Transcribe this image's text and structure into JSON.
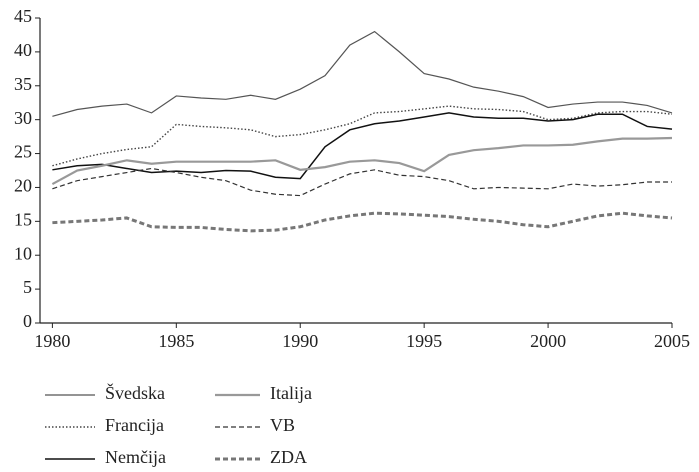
{
  "chart_data": {
    "type": "line",
    "x": [
      1980,
      1981,
      1982,
      1983,
      1984,
      1985,
      1986,
      1987,
      1988,
      1989,
      1990,
      1991,
      1992,
      1993,
      1994,
      1995,
      1996,
      1997,
      1998,
      1999,
      2000,
      2001,
      2002,
      2003,
      2004,
      2005
    ],
    "series": [
      {
        "name": "Švedska",
        "color": "#555555",
        "width": 1.2,
        "dash": "solid",
        "values": [
          30.5,
          31.5,
          32,
          32.3,
          31,
          33.5,
          33.2,
          33,
          33.6,
          33,
          34.5,
          36.5,
          41,
          43,
          40,
          36.8,
          36,
          34.8,
          34.2,
          33.4,
          31.8,
          32.3,
          32.6,
          32.6,
          32.1,
          31
        ]
      },
      {
        "name": "Francija",
        "color": "#444444",
        "width": 1.4,
        "dash": "dotted",
        "values": [
          23.2,
          24.2,
          25,
          25.6,
          26,
          29.3,
          29,
          28.8,
          28.5,
          27.5,
          27.8,
          28.5,
          29.4,
          31,
          31.2,
          31.6,
          32,
          31.6,
          31.5,
          31.2,
          30,
          30.2,
          31,
          31.2,
          31.2,
          30.8
        ]
      },
      {
        "name": "Nemčija",
        "color": "#111111",
        "width": 1.5,
        "dash": "solid",
        "values": [
          22.6,
          23.2,
          23.4,
          22.8,
          22.2,
          22.4,
          22.2,
          22.5,
          22.4,
          21.5,
          21.3,
          26,
          28.5,
          29.4,
          29.8,
          30.4,
          31,
          30.4,
          30.2,
          30.2,
          29.8,
          30,
          30.8,
          30.8,
          29,
          28.6
        ]
      },
      {
        "name": "Italija",
        "color": "#999999",
        "width": 2.2,
        "dash": "solid",
        "values": [
          20.5,
          22.5,
          23.2,
          24,
          23.5,
          23.8,
          23.8,
          23.8,
          23.8,
          24,
          22.6,
          23,
          23.8,
          24,
          23.6,
          22.4,
          24.8,
          25.5,
          25.8,
          26.2,
          26.2,
          26.3,
          26.8,
          27.2,
          27.2,
          27.3
        ]
      },
      {
        "name": "VB",
        "color": "#333333",
        "width": 1.2,
        "dash": "dashed",
        "values": [
          19.8,
          21,
          21.6,
          22.2,
          22.8,
          22.2,
          21.5,
          21,
          19.6,
          19,
          18.8,
          20.5,
          22,
          22.6,
          21.8,
          21.6,
          21,
          19.8,
          20,
          19.9,
          19.8,
          20.5,
          20.2,
          20.4,
          20.8,
          20.8
        ]
      },
      {
        "name": "ZDA",
        "color": "#777777",
        "width": 3,
        "dash": "dashed",
        "values": [
          14.8,
          15,
          15.2,
          15.5,
          14.2,
          14.1,
          14.1,
          13.8,
          13.6,
          13.7,
          14.2,
          15.2,
          15.8,
          16.2,
          16.1,
          15.9,
          15.7,
          15.3,
          15,
          14.5,
          14.2,
          15,
          15.8,
          16.2,
          15.8,
          15.5
        ]
      }
    ],
    "xlim": [
      1979.5,
      2005
    ],
    "xticks": [
      1980,
      1985,
      1990,
      1995,
      2000,
      2005
    ],
    "ylim": [
      0,
      45
    ],
    "yticks": [
      0,
      5,
      10,
      15,
      20,
      25,
      30,
      35,
      40,
      45
    ],
    "legend": "bottom"
  }
}
